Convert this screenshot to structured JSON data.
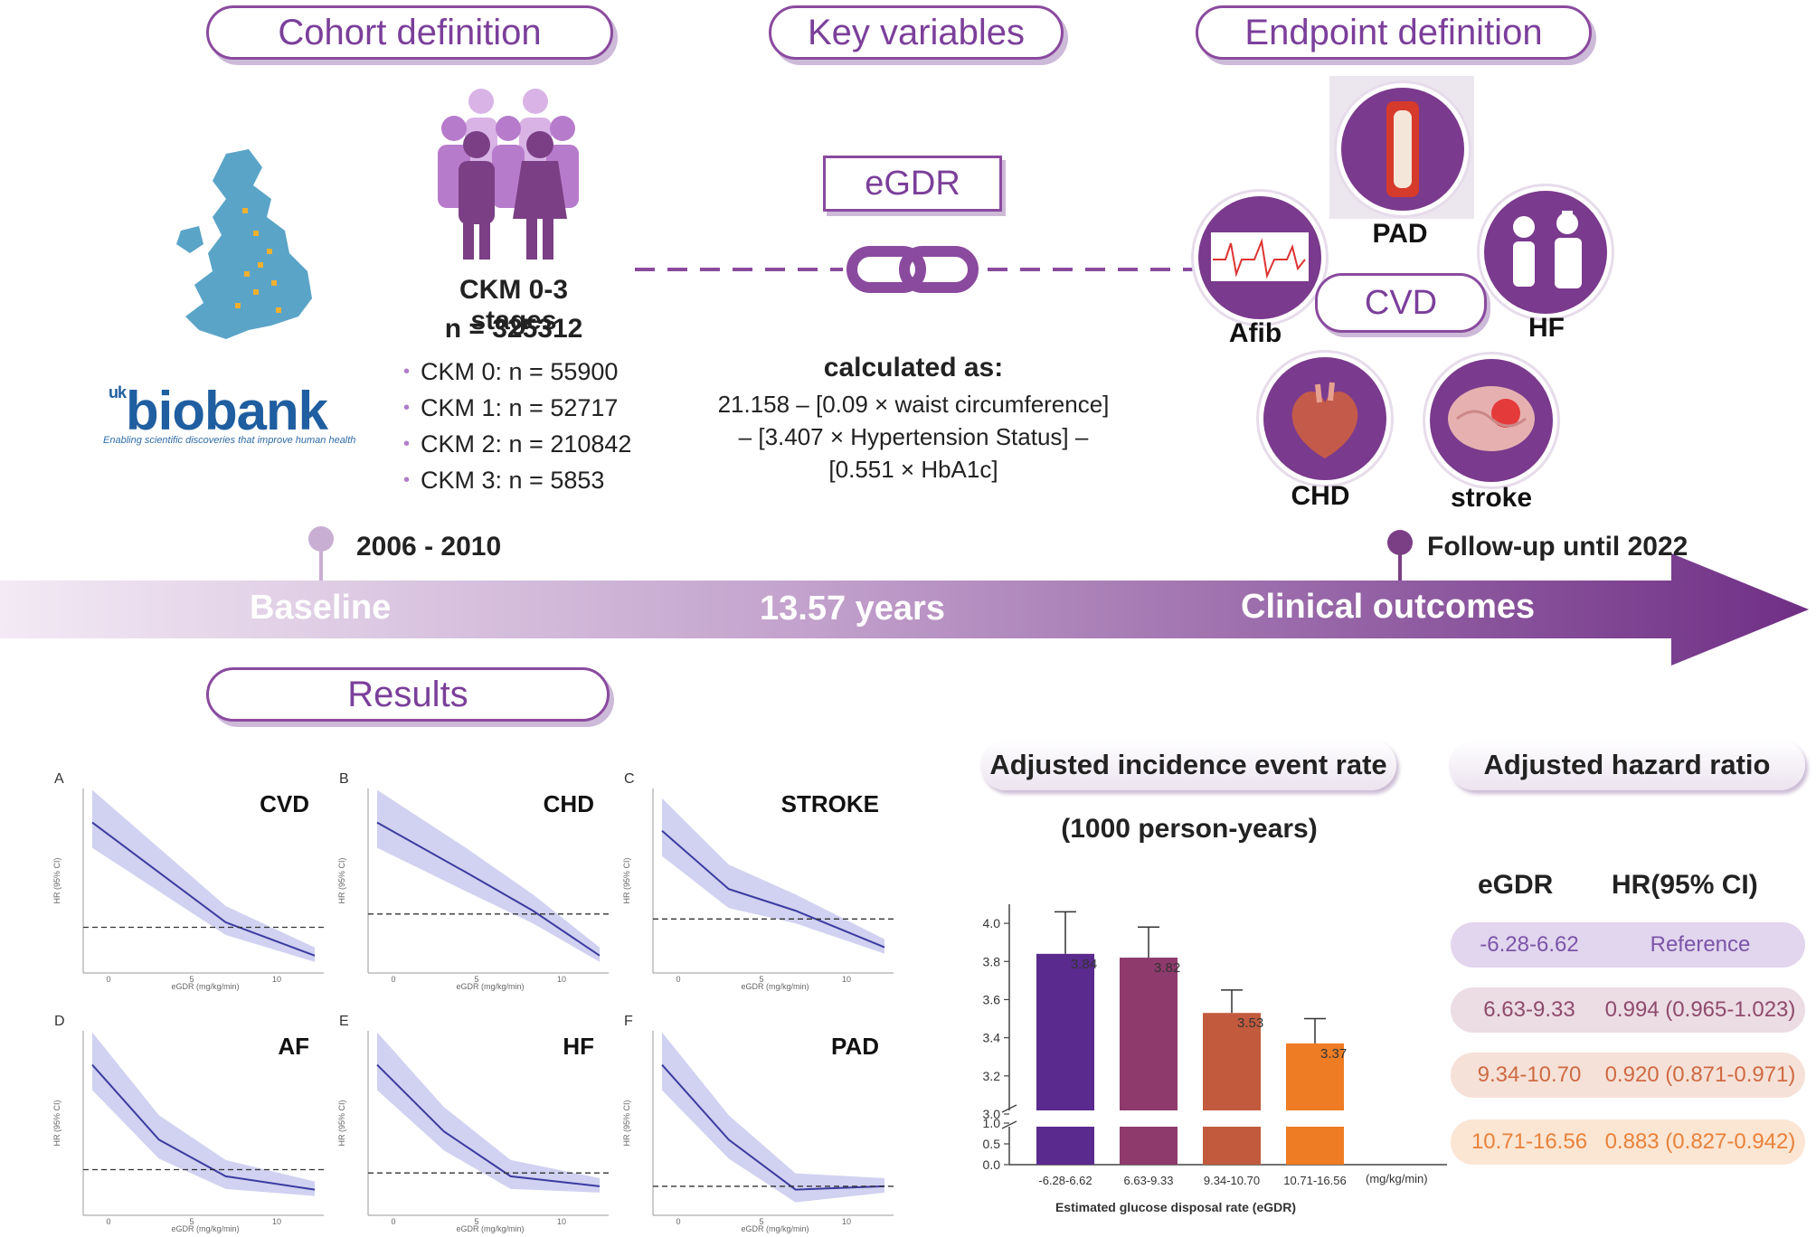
{
  "headers": {
    "cohort": "Cohort definition",
    "key_variables": "Key variables",
    "endpoint": "Endpoint definition",
    "results": "Results"
  },
  "biobank": {
    "uk": "uk",
    "name": "biobank",
    "tagline": "Enabling scientific discoveries that improve human health"
  },
  "cohort": {
    "title": "CKM 0-3 stages",
    "n": "n = 325312",
    "stages": [
      "CKM 0: n = 55900",
      "CKM 1: n = 52717",
      "CKM 2: n = 210842",
      "CKM 3: n = 5853"
    ]
  },
  "key_variable": {
    "name": "eGDR",
    "calc_label": "calculated as:",
    "formula": [
      "21.158 – [0.09 × waist circumference]",
      "– [3.407 × Hypertension Status] –",
      "[0.551 × HbA1c]"
    ]
  },
  "endpoints": {
    "center": "CVD",
    "items": [
      "PAD",
      "Afib",
      "HF",
      "CHD",
      "stroke"
    ]
  },
  "timeline": {
    "baseline_years": "2006 - 2010",
    "baseline": "Baseline",
    "duration": "13.57 years",
    "followup": "Follow-up until 2022",
    "outcomes": "Clinical outcomes"
  },
  "rcs_panels": [
    {
      "letter": "A",
      "title": "CVD"
    },
    {
      "letter": "B",
      "title": "CHD"
    },
    {
      "letter": "C",
      "title": "STROKE"
    },
    {
      "letter": "D",
      "title": "AF"
    },
    {
      "letter": "E",
      "title": "HF"
    },
    {
      "letter": "F",
      "title": "PAD"
    }
  ],
  "rcs_axes": {
    "xlabel": "eGDR (mg/kg/min)",
    "ylabel": "HR (95% CI)",
    "xticks": [
      "0",
      "5",
      "10"
    ]
  },
  "incidence": {
    "title": "Adjusted incidence event rate",
    "subtitle": "(1000 person-years)"
  },
  "hazard": {
    "title": "Adjusted hazard ratio",
    "col1": "eGDR",
    "col2": "HR(95% CI)",
    "rows": [
      {
        "range": "-6.28-6.62",
        "hr": "Reference",
        "bg": "#e2d5ee",
        "color": "#7b55a8"
      },
      {
        "range": "6.63-9.33",
        "hr": "0.994 (0.965-1.023)",
        "bg": "#ecdce4",
        "color": "#8e4b6c"
      },
      {
        "range": "9.34-10.70",
        "hr": "0.920 (0.871-0.971)",
        "bg": "#f6e1d8",
        "color": "#cf6a43"
      },
      {
        "range": "10.71-16.56",
        "hr": "0.883 (0.827-0.942)",
        "bg": "#fbe5d3",
        "color": "#e8823a"
      }
    ]
  },
  "chart_data": [
    {
      "type": "bar",
      "title": "Adjusted incidence event rate",
      "subtitle": "(1000 person-years)",
      "categories": [
        "-6.28-6.62",
        "6.63-9.33",
        "9.34-10.70",
        "10.71-16.56"
      ],
      "values": [
        3.84,
        3.82,
        3.53,
        3.37
      ],
      "error_upper": [
        4.06,
        3.98,
        3.65,
        3.5
      ],
      "colors": [
        "#5a2a8e",
        "#8e3a6c",
        "#c25a3e",
        "#ee7c24"
      ],
      "xlabel": "Estimated glucose disposal rate (eGDR)",
      "xunit": "(mg/kg/min)",
      "yticks": [
        "0.0",
        "0.5",
        "1.0",
        "3.0",
        "3.2",
        "3.4",
        "3.6",
        "3.8",
        "4.0"
      ],
      "ylim": [
        3.0,
        4.1
      ],
      "axis_break": true
    }
  ]
}
